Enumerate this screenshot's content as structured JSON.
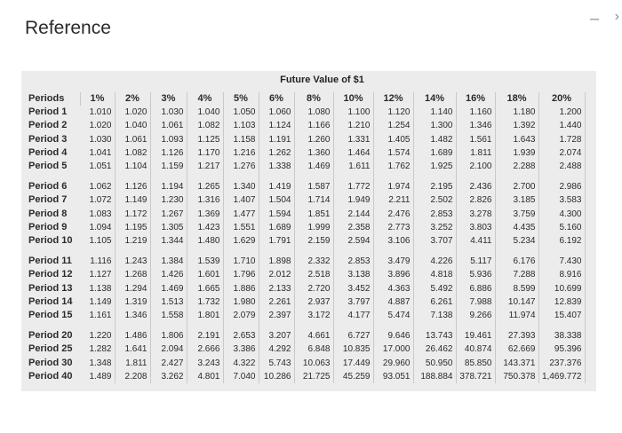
{
  "page": {
    "heading": "Reference"
  },
  "icons": [
    "minimize-icon",
    "chevron-right-icon"
  ],
  "table": {
    "title": "Future Value of $1",
    "headers": [
      "Periods",
      "1%",
      "2%",
      "3%",
      "4%",
      "5%",
      "6%",
      "8%",
      "10%",
      "12%",
      "14%",
      "16%",
      "18%",
      "20%"
    ],
    "groups": [
      [
        [
          "Period 1",
          "1.010",
          "1.020",
          "1.030",
          "1.040",
          "1.050",
          "1.060",
          "1.080",
          "1.100",
          "1.120",
          "1.140",
          "1.160",
          "1.180",
          "1.200"
        ],
        [
          "Period 2",
          "1.020",
          "1.040",
          "1.061",
          "1.082",
          "1.103",
          "1.124",
          "1.166",
          "1.210",
          "1.254",
          "1.300",
          "1.346",
          "1.392",
          "1.440"
        ],
        [
          "Period 3",
          "1.030",
          "1.061",
          "1.093",
          "1.125",
          "1.158",
          "1.191",
          "1.260",
          "1.331",
          "1.405",
          "1.482",
          "1.561",
          "1.643",
          "1.728"
        ],
        [
          "Period 4",
          "1.041",
          "1.082",
          "1.126",
          "1.170",
          "1.216",
          "1.262",
          "1.360",
          "1.464",
          "1.574",
          "1.689",
          "1.811",
          "1.939",
          "2.074"
        ],
        [
          "Period 5",
          "1.051",
          "1.104",
          "1.159",
          "1.217",
          "1.276",
          "1.338",
          "1.469",
          "1.611",
          "1.762",
          "1.925",
          "2.100",
          "2.288",
          "2.488"
        ]
      ],
      [
        [
          "Period 6",
          "1.062",
          "1.126",
          "1.194",
          "1.265",
          "1.340",
          "1.419",
          "1.587",
          "1.772",
          "1.974",
          "2.195",
          "2.436",
          "2.700",
          "2.986"
        ],
        [
          "Period 7",
          "1.072",
          "1.149",
          "1.230",
          "1.316",
          "1.407",
          "1.504",
          "1.714",
          "1.949",
          "2.211",
          "2.502",
          "2.826",
          "3.185",
          "3.583"
        ],
        [
          "Period 8",
          "1.083",
          "1.172",
          "1.267",
          "1.369",
          "1.477",
          "1.594",
          "1.851",
          "2.144",
          "2.476",
          "2.853",
          "3.278",
          "3.759",
          "4.300"
        ],
        [
          "Period 9",
          "1.094",
          "1.195",
          "1.305",
          "1.423",
          "1.551",
          "1.689",
          "1.999",
          "2.358",
          "2.773",
          "3.252",
          "3.803",
          "4.435",
          "5.160"
        ],
        [
          "Period 10",
          "1.105",
          "1.219",
          "1.344",
          "1.480",
          "1.629",
          "1.791",
          "2.159",
          "2.594",
          "3.106",
          "3.707",
          "4.411",
          "5.234",
          "6.192"
        ]
      ],
      [
        [
          "Period 11",
          "1.116",
          "1.243",
          "1.384",
          "1.539",
          "1.710",
          "1.898",
          "2.332",
          "2.853",
          "3.479",
          "4.226",
          "5.117",
          "6.176",
          "7.430"
        ],
        [
          "Period 12",
          "1.127",
          "1.268",
          "1.426",
          "1.601",
          "1.796",
          "2.012",
          "2.518",
          "3.138",
          "3.896",
          "4.818",
          "5.936",
          "7.288",
          "8.916"
        ],
        [
          "Period 13",
          "1.138",
          "1.294",
          "1.469",
          "1.665",
          "1.886",
          "2.133",
          "2.720",
          "3.452",
          "4.363",
          "5.492",
          "6.886",
          "8.599",
          "10.699"
        ],
        [
          "Period 14",
          "1.149",
          "1.319",
          "1.513",
          "1.732",
          "1.980",
          "2.261",
          "2.937",
          "3.797",
          "4.887",
          "6.261",
          "7.988",
          "10.147",
          "12.839"
        ],
        [
          "Period 15",
          "1.161",
          "1.346",
          "1.558",
          "1.801",
          "2.079",
          "2.397",
          "3.172",
          "4.177",
          "5.474",
          "7.138",
          "9.266",
          "11.974",
          "15.407"
        ]
      ],
      [
        [
          "Period 20",
          "1.220",
          "1.486",
          "1.806",
          "2.191",
          "2.653",
          "3.207",
          "4.661",
          "6.727",
          "9.646",
          "13.743",
          "19.461",
          "27.393",
          "38.338"
        ],
        [
          "Period 25",
          "1.282",
          "1.641",
          "2.094",
          "2.666",
          "3.386",
          "4.292",
          "6.848",
          "10.835",
          "17.000",
          "26.462",
          "40.874",
          "62.669",
          "95.396"
        ],
        [
          "Period 30",
          "1.348",
          "1.811",
          "2.427",
          "3.243",
          "4.322",
          "5.743",
          "10.063",
          "17.449",
          "29.960",
          "50.950",
          "85.850",
          "143.371",
          "237.376"
        ],
        [
          "Period 40",
          "1.489",
          "2.208",
          "3.262",
          "4.801",
          "7.040",
          "10.286",
          "21.725",
          "45.259",
          "93.051",
          "188.884",
          "378.721",
          "750.378",
          "1,469.772"
        ]
      ]
    ]
  }
}
